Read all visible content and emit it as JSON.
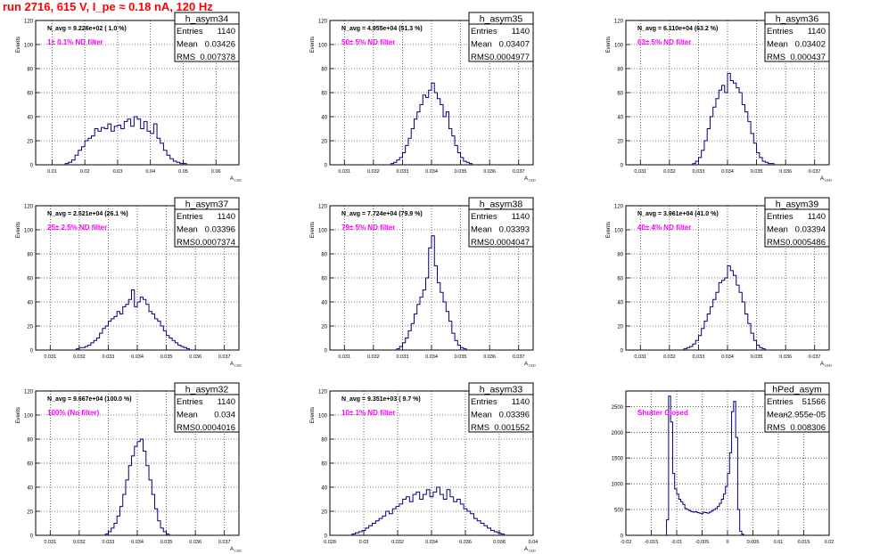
{
  "header": {
    "run_title": "run 2716,   615 V, I_pe ≈ 0.18 nA, 120 Hz"
  },
  "colors": {
    "histogram_line": "#000080",
    "annotation_magenta": "#ff00ff",
    "title_red": "#ff0000",
    "grid": "#000000"
  },
  "chart_data": [
    {
      "type": "bar",
      "name": "h_asym34",
      "title": "h_asym34",
      "navg_label": "N_avg = 9.226e+02 ( 1.0 %)",
      "filter_label": "1± 0.1% ND filter",
      "stats": {
        "entries_label": "Entries",
        "entries": "1140",
        "mean_label": "Mean",
        "mean": "0.03426",
        "rms_label": "RMS",
        "rms": "0.007378"
      },
      "ylabel": "Events",
      "xlabel": "A",
      "xlim": [
        0.005,
        0.067
      ],
      "ylim": [
        0,
        120
      ],
      "xticks": [
        0.01,
        0.02,
        0.03,
        0.04,
        0.05,
        0.06
      ],
      "xtick_labels": [
        "0.01",
        "0.02",
        "0.03",
        "0.04",
        "0.05",
        "0.06"
      ],
      "yticks": [
        0,
        20,
        40,
        60,
        80,
        100,
        120
      ],
      "xgrid": [
        0.01,
        0.02,
        0.03,
        0.04,
        0.05,
        0.06
      ],
      "bin_start": 0.014,
      "bin_width": 0.001,
      "values": [
        1,
        2,
        4,
        8,
        12,
        15,
        20,
        22,
        24,
        30,
        28,
        31,
        30,
        34,
        28,
        32,
        33,
        30,
        36,
        38,
        32,
        40,
        38,
        30,
        36,
        28,
        26,
        34,
        22,
        18,
        12,
        8,
        5,
        3,
        2,
        1,
        1
      ]
    },
    {
      "type": "bar",
      "name": "h_asym35",
      "title": "h_asym35",
      "navg_label": "N_avg = 4.955e+04 (51.3 %)",
      "filter_label": "50± 5% ND filter",
      "stats": {
        "entries_label": "Entries",
        "entries": "1140",
        "mean_label": "Mean",
        "mean": "0.03407",
        "rms_label": "RMS",
        "rms": "0.0004977"
      },
      "ylabel": "Events",
      "xlabel": "A",
      "xlim": [
        0.0305,
        0.0375
      ],
      "ylim": [
        0,
        120
      ],
      "xticks": [
        0.031,
        0.032,
        0.033,
        0.034,
        0.035,
        0.036,
        0.037
      ],
      "xtick_labels": [
        "0.031",
        "0.032",
        "0.033",
        "0.034",
        "0.035",
        "0.036",
        "0.037"
      ],
      "yticks": [
        0,
        20,
        40,
        60,
        80,
        100,
        120
      ],
      "xgrid": [
        0.031,
        0.032,
        0.033,
        0.034,
        0.035,
        0.036,
        0.037
      ],
      "bin_start": 0.0326,
      "bin_width": 0.0001,
      "values": [
        1,
        2,
        4,
        6,
        10,
        16,
        22,
        30,
        38,
        44,
        50,
        58,
        56,
        62,
        68,
        60,
        55,
        50,
        40,
        44,
        30,
        24,
        16,
        10,
        6,
        3,
        2,
        1
      ]
    },
    {
      "type": "bar",
      "name": "h_asym36",
      "title": "h_asym36",
      "navg_label": "N_avg = 6.110e+04 (63.2 %)",
      "filter_label": "63± 5% ND filter",
      "stats": {
        "entries_label": "Entries",
        "entries": "1140",
        "mean_label": "Mean",
        "mean": "0.03402",
        "rms_label": "RMS",
        "rms": "0.000437"
      },
      "ylabel": "Events",
      "xlabel": "A",
      "xlim": [
        0.0305,
        0.0375
      ],
      "ylim": [
        0,
        120
      ],
      "xticks": [
        0.031,
        0.032,
        0.033,
        0.034,
        0.035,
        0.036,
        0.037
      ],
      "xtick_labels": [
        "0.031",
        "0.032",
        "0.033",
        "0.034",
        "0.035",
        "0.036",
        "0.037"
      ],
      "yticks": [
        0,
        20,
        40,
        60,
        80,
        100,
        120
      ],
      "xgrid": [
        0.031,
        0.032,
        0.033,
        0.034,
        0.035,
        0.036,
        0.037
      ],
      "bin_start": 0.0328,
      "bin_width": 0.0001,
      "values": [
        1,
        3,
        6,
        12,
        20,
        30,
        40,
        48,
        55,
        62,
        66,
        60,
        76,
        70,
        68,
        64,
        60,
        50,
        44,
        36,
        26,
        18,
        10,
        6,
        3,
        2,
        1,
        1
      ]
    },
    {
      "type": "bar",
      "name": "h_asym37",
      "title": "h_asym37",
      "navg_label": "N_avg = 2.521e+04 (26.1 %)",
      "filter_label": "25± 2.5% ND filter",
      "stats": {
        "entries_label": "Entries",
        "entries": "1140",
        "mean_label": "Mean",
        "mean": "0.03396",
        "rms_label": "RMS",
        "rms": "0.0007374"
      },
      "ylabel": "Events",
      "xlabel": "A",
      "xlim": [
        0.0305,
        0.0375
      ],
      "ylim": [
        0,
        120
      ],
      "xticks": [
        0.031,
        0.032,
        0.033,
        0.034,
        0.035,
        0.036,
        0.037
      ],
      "xtick_labels": [
        "0.031",
        "0.032",
        "0.033",
        "0.034",
        "0.035",
        "0.036",
        "0.037"
      ],
      "yticks": [
        0,
        20,
        40,
        60,
        80,
        100,
        120
      ],
      "xgrid": [
        0.031,
        0.032,
        0.033,
        0.034,
        0.035,
        0.036,
        0.037
      ],
      "bin_start": 0.0319,
      "bin_width": 0.0001,
      "values": [
        1,
        2,
        2,
        3,
        4,
        6,
        8,
        10,
        14,
        18,
        20,
        24,
        26,
        28,
        32,
        30,
        36,
        38,
        42,
        50,
        36,
        40,
        44,
        42,
        38,
        32,
        30,
        26,
        24,
        20,
        16,
        12,
        10,
        8,
        6,
        4,
        3,
        2,
        1
      ]
    },
    {
      "type": "bar",
      "name": "h_asym38",
      "title": "h_asym38",
      "navg_label": "N_avg = 7.724e+04 (79.9 %)",
      "filter_label": "79± 5% ND filter",
      "stats": {
        "entries_label": "Entries",
        "entries": "1140",
        "mean_label": "Mean",
        "mean": "0.03393",
        "rms_label": "RMS",
        "rms": "0.0004047"
      },
      "ylabel": "Events",
      "xlabel": "A",
      "xlim": [
        0.0305,
        0.0375
      ],
      "ylim": [
        0,
        120
      ],
      "xticks": [
        0.031,
        0.032,
        0.033,
        0.034,
        0.035,
        0.036,
        0.037
      ],
      "xtick_labels": [
        "0.031",
        "0.032",
        "0.033",
        "0.034",
        "0.035",
        "0.036",
        "0.037"
      ],
      "yticks": [
        0,
        20,
        40,
        60,
        80,
        100,
        120
      ],
      "xgrid": [
        0.031,
        0.032,
        0.033,
        0.034,
        0.035,
        0.036,
        0.037
      ],
      "bin_start": 0.0328,
      "bin_width": 0.0001,
      "values": [
        1,
        3,
        6,
        10,
        16,
        22,
        30,
        38,
        44,
        50,
        60,
        85,
        95,
        70,
        56,
        48,
        40,
        32,
        24,
        14,
        8,
        4,
        2,
        1
      ]
    },
    {
      "type": "bar",
      "name": "h_asym39",
      "title": "h_asym39",
      "navg_label": "N_avg = 3.961e+04 (41.0 %)",
      "filter_label": "40± 4% ND filter",
      "stats": {
        "entries_label": "Entries",
        "entries": "1140",
        "mean_label": "Mean",
        "mean": "0.03394",
        "rms_label": "RMS",
        "rms": "0.0005486"
      },
      "ylabel": "Events",
      "xlabel": "A",
      "xlim": [
        0.0305,
        0.0375
      ],
      "ylim": [
        0,
        120
      ],
      "xticks": [
        0.031,
        0.032,
        0.033,
        0.034,
        0.035,
        0.036,
        0.037
      ],
      "xtick_labels": [
        "0.031",
        "0.032",
        "0.033",
        "0.034",
        "0.035",
        "0.036",
        "0.037"
      ],
      "yticks": [
        0,
        20,
        40,
        60,
        80,
        100,
        120
      ],
      "xgrid": [
        0.031,
        0.032,
        0.033,
        0.034,
        0.035,
        0.036,
        0.037
      ],
      "bin_start": 0.0325,
      "bin_width": 0.0001,
      "values": [
        1,
        2,
        3,
        5,
        8,
        12,
        18,
        24,
        30,
        36,
        42,
        48,
        56,
        58,
        60,
        70,
        66,
        62,
        54,
        48,
        40,
        30,
        22,
        14,
        8,
        4,
        2,
        1
      ]
    },
    {
      "type": "bar",
      "name": "h_asym32",
      "title": "h_asym32",
      "navg_label": "N_avg = 9.667e+04 (100.0 %)",
      "filter_label": "100% (No filter)",
      "stats": {
        "entries_label": "Entries",
        "entries": "1140",
        "mean_label": "Mean",
        "mean": "0.034",
        "rms_label": "RMS",
        "rms": "0.0004016"
      },
      "ylabel": "Events",
      "xlabel": "A",
      "xlim": [
        0.0305,
        0.0375
      ],
      "ylim": [
        0,
        120
      ],
      "xticks": [
        0.031,
        0.032,
        0.033,
        0.034,
        0.035,
        0.036,
        0.037
      ],
      "xtick_labels": [
        "0.031",
        "0.032",
        "0.033",
        "0.034",
        "0.035",
        "0.036",
        "0.037"
      ],
      "yticks": [
        0,
        20,
        40,
        60,
        80,
        100,
        120
      ],
      "xgrid": [
        0.031,
        0.032,
        0.033,
        0.034,
        0.035,
        0.036,
        0.037
      ],
      "bin_start": 0.0329,
      "bin_width": 0.0001,
      "values": [
        1,
        3,
        6,
        10,
        16,
        24,
        34,
        46,
        58,
        66,
        74,
        78,
        80,
        70,
        58,
        46,
        34,
        22,
        12,
        6,
        3,
        1
      ]
    },
    {
      "type": "bar",
      "name": "h_asym33",
      "title": "h_asym33",
      "navg_label": "N_avg = 9.351e+03 ( 9.7 %)",
      "filter_label": "10± 1% ND filter",
      "stats": {
        "entries_label": "Entries",
        "entries": "1140",
        "mean_label": "Mean",
        "mean": "0.03396",
        "rms_label": "RMS",
        "rms": "0.001552"
      },
      "ylabel": "Events",
      "xlabel": "A",
      "xlim": [
        0.028,
        0.04
      ],
      "ylim": [
        0,
        120
      ],
      "xticks": [
        0.028,
        0.03,
        0.032,
        0.034,
        0.036,
        0.038,
        0.04
      ],
      "xtick_labels": [
        "0.028",
        "0.03",
        "0.032",
        "0.034",
        "0.036",
        "0.038",
        "0.04"
      ],
      "yticks": [
        0,
        20,
        40,
        60,
        80,
        100,
        120
      ],
      "xgrid": [
        0.03,
        0.032,
        0.034,
        0.036,
        0.038
      ],
      "bin_start": 0.0293,
      "bin_width": 0.0002,
      "values": [
        1,
        2,
        3,
        4,
        6,
        8,
        10,
        12,
        14,
        16,
        20,
        18,
        22,
        24,
        26,
        30,
        32,
        28,
        34,
        36,
        30,
        34,
        38,
        32,
        36,
        40,
        34,
        30,
        38,
        32,
        28,
        30,
        26,
        22,
        20,
        18,
        14,
        12,
        10,
        8,
        6,
        4,
        3,
        2,
        1
      ]
    },
    {
      "type": "bar",
      "name": "hPed_asym",
      "title": "hPed_asym",
      "navg_label": "",
      "filter_label": "Shutter Closed",
      "stats": {
        "entries_label": "Entries",
        "entries": "51566",
        "mean_label": "Mean",
        "mean": "-2.955e-05",
        "rms_label": "RMS",
        "rms": "0.008306"
      },
      "ylabel": "",
      "xlabel": "",
      "xlim": [
        -0.02,
        0.02
      ],
      "ylim": [
        0,
        2800
      ],
      "xticks": [
        -0.02,
        -0.015,
        -0.01,
        -0.005,
        0,
        0.005,
        0.01,
        0.015,
        0.02
      ],
      "xtick_labels": [
        "-0.02",
        "-0.015",
        "-0.01",
        "-0.005",
        "0",
        "0.005",
        "0.01",
        "0.015",
        "0.02"
      ],
      "yticks": [
        0,
        500,
        1000,
        1500,
        2000,
        2500
      ],
      "xgrid": [
        -0.015,
        -0.01,
        -0.005,
        0,
        0.005,
        0.01,
        0.015
      ],
      "bin_start": -0.012,
      "bin_width": 0.0004,
      "values": [
        300,
        2700,
        2200,
        1200,
        900,
        800,
        700,
        650,
        600,
        520,
        500,
        480,
        460,
        450,
        460,
        440,
        430,
        420,
        450,
        440,
        430,
        450,
        470,
        500,
        520,
        560,
        620,
        700,
        800,
        950,
        1200,
        1600,
        2400,
        2600,
        1900,
        500,
        80,
        20
      ]
    }
  ]
}
